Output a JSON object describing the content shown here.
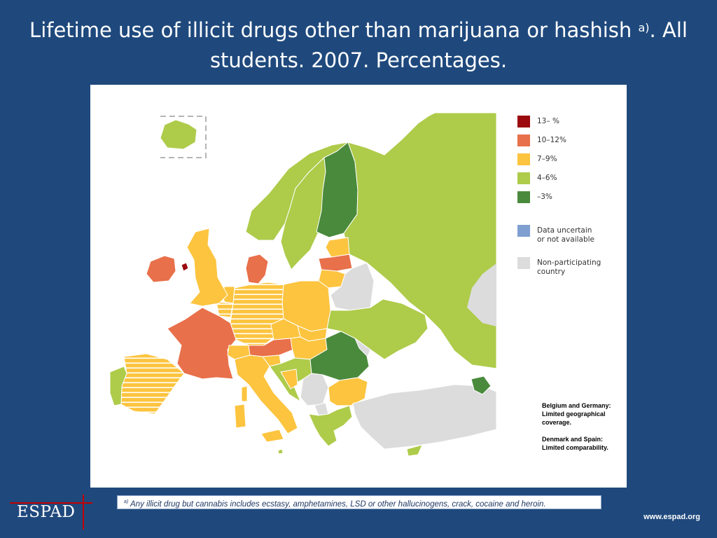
{
  "title": {
    "main": "Lifetime use of illicit drugs other than marijuana or hashish",
    "footnote_marker": "a)",
    "rest": ". All students. 2007. Percentages."
  },
  "legend": [
    {
      "label": "13– %",
      "color": "#9b0a0f"
    },
    {
      "label": "10–12%",
      "color": "#e8704a"
    },
    {
      "label": "7–9%",
      "color": "#fcc43f"
    },
    {
      "label": "4–6%",
      "color": "#aecb4a"
    },
    {
      "label": "–3%",
      "color": "#4a8a3c"
    },
    {
      "label": "Data uncertain\nor not available",
      "color": "#7f9fd0"
    },
    {
      "label": "Non-participating\n country",
      "color": "#dcdcdc"
    }
  ],
  "notes": {
    "note1": "Belgium and Germany: Limited geographical coverage.",
    "note2": "Denmark and Spain: Limited comparability."
  },
  "footnote": {
    "marker": "a)",
    "text": " Any illicit drug but cannabis includes ecstasy, amphetamines, LSD or other hallucinogens, crack, cocaine and heroin."
  },
  "logo": "ESPAD",
  "url": "www.espad.org",
  "regions": [
    {
      "name": "iceland",
      "category": "4-6"
    },
    {
      "name": "norway",
      "category": "4-6"
    },
    {
      "name": "sweden",
      "category": "4-6"
    },
    {
      "name": "finland",
      "category": "-3"
    },
    {
      "name": "russia",
      "category": "4-6"
    },
    {
      "name": "estonia",
      "category": "7-9"
    },
    {
      "name": "latvia",
      "category": "10-12"
    },
    {
      "name": "lithuania",
      "category": "7-9"
    },
    {
      "name": "belarus",
      "category": "non-participating"
    },
    {
      "name": "ukraine",
      "category": "4-6"
    },
    {
      "name": "poland",
      "category": "7-9"
    },
    {
      "name": "germany",
      "category": "7-9"
    },
    {
      "name": "denmark",
      "category": "10-12"
    },
    {
      "name": "netherlands",
      "category": "7-9"
    },
    {
      "name": "belgium",
      "category": "7-9"
    },
    {
      "name": "uk",
      "category": "7-9"
    },
    {
      "name": "ireland",
      "category": "10-12"
    },
    {
      "name": "isle-of-man",
      "category": "13-"
    },
    {
      "name": "france",
      "category": "10-12"
    },
    {
      "name": "spain",
      "category": "7-9"
    },
    {
      "name": "portugal",
      "category": "4-6"
    },
    {
      "name": "switzerland",
      "category": "7-9"
    },
    {
      "name": "austria",
      "category": "10-12"
    },
    {
      "name": "czech-republic",
      "category": "7-9"
    },
    {
      "name": "slovakia",
      "category": "7-9"
    },
    {
      "name": "hungary",
      "category": "7-9"
    },
    {
      "name": "slovenia",
      "category": "7-9"
    },
    {
      "name": "italy",
      "category": "7-9"
    },
    {
      "name": "croatia",
      "category": "4-6"
    },
    {
      "name": "bosnia",
      "category": "7-9"
    },
    {
      "name": "serbia",
      "category": "non-participating"
    },
    {
      "name": "romania",
      "category": "-3"
    },
    {
      "name": "moldova",
      "category": "non-participating"
    },
    {
      "name": "bulgaria",
      "category": "7-9"
    },
    {
      "name": "macedonia",
      "category": "non-participating"
    },
    {
      "name": "greece",
      "category": "4-6"
    },
    {
      "name": "turkey",
      "category": "non-participating"
    },
    {
      "name": "armenia",
      "category": "-3"
    },
    {
      "name": "cyprus",
      "category": "4-6"
    },
    {
      "name": "malta",
      "category": "4-6"
    },
    {
      "name": "corsica",
      "category": "7-9"
    },
    {
      "name": "sardinia",
      "category": "7-9"
    },
    {
      "name": "sicily",
      "category": "7-9"
    }
  ]
}
